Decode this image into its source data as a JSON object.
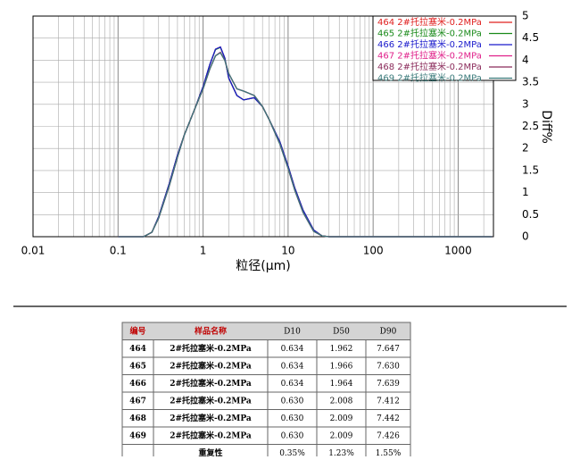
{
  "chart_data": {
    "type": "line",
    "x_label": "粒径(μm)",
    "y_label": "Diff%",
    "log_x": true,
    "grid": true,
    "legend": "top-right",
    "xlim": [
      0.01,
      2600
    ],
    "xticks": [
      0.01,
      0.1,
      1,
      10,
      100,
      1000
    ],
    "ylim": [
      0,
      5
    ],
    "yticks": [
      0,
      0.5,
      1,
      1.5,
      2,
      2.5,
      3,
      3.5,
      4,
      4.5,
      5
    ],
    "x": [
      0.1,
      0.2,
      0.25,
      0.3,
      0.4,
      0.5,
      0.6,
      0.8,
      1,
      1.2,
      1.4,
      1.6,
      1.8,
      2,
      2.5,
      3,
      4,
      5,
      6,
      8,
      10,
      12,
      15,
      20,
      25,
      30,
      100,
      2500
    ],
    "series": [
      {
        "name": "464 2#托拉塞米-0.2MPa",
        "color": "#e0201f",
        "values": [
          0,
          0,
          0.1,
          0.45,
          1.2,
          1.85,
          2.3,
          2.9,
          3.4,
          3.9,
          4.25,
          4.3,
          4.05,
          3.6,
          3.2,
          3.1,
          3.15,
          2.95,
          2.65,
          2.15,
          1.6,
          1.1,
          0.6,
          0.15,
          0.02,
          0,
          0,
          0
        ]
      },
      {
        "name": "465 2#托拉塞米-0.2MPa",
        "color": "#1a8a1a",
        "values": [
          0,
          0,
          0.1,
          0.45,
          1.2,
          1.85,
          2.3,
          2.9,
          3.4,
          3.9,
          4.24,
          4.29,
          4.05,
          3.6,
          3.2,
          3.1,
          3.15,
          2.95,
          2.65,
          2.15,
          1.6,
          1.1,
          0.6,
          0.15,
          0.02,
          0,
          0,
          0
        ]
      },
      {
        "name": "466 2#托拉塞米-0.2MPa",
        "color": "#1a1acc",
        "values": [
          0,
          0,
          0.1,
          0.45,
          1.2,
          1.85,
          2.3,
          2.9,
          3.4,
          3.9,
          4.25,
          4.3,
          4.05,
          3.6,
          3.2,
          3.1,
          3.15,
          2.95,
          2.65,
          2.15,
          1.6,
          1.1,
          0.6,
          0.15,
          0.02,
          0,
          0,
          0
        ]
      },
      {
        "name": "467 2#托拉塞米-0.2MPa",
        "color": "#e0208a",
        "values": [
          0,
          0,
          0.1,
          0.42,
          1.15,
          1.8,
          2.3,
          2.9,
          3.35,
          3.8,
          4.1,
          4.18,
          4.0,
          3.7,
          3.35,
          3.3,
          3.2,
          2.95,
          2.65,
          2.1,
          1.55,
          1.05,
          0.55,
          0.12,
          0.02,
          0,
          0,
          0
        ]
      },
      {
        "name": "468 2#托拉塞米-0.2MPa",
        "color": "#8a2a5a",
        "values": [
          0,
          0,
          0.1,
          0.42,
          1.15,
          1.8,
          2.3,
          2.9,
          3.35,
          3.8,
          4.1,
          4.17,
          4.0,
          3.7,
          3.35,
          3.3,
          3.2,
          2.95,
          2.65,
          2.1,
          1.55,
          1.05,
          0.55,
          0.12,
          0.02,
          0,
          0,
          0
        ]
      },
      {
        "name": "469 2#托拉塞米-0.2MPa",
        "color": "#3a7a7a",
        "values": [
          0,
          0,
          0.1,
          0.42,
          1.15,
          1.8,
          2.3,
          2.9,
          3.35,
          3.8,
          4.1,
          4.17,
          4.0,
          3.7,
          3.35,
          3.3,
          3.2,
          2.95,
          2.65,
          2.1,
          1.55,
          1.05,
          0.55,
          0.12,
          0.02,
          0,
          0,
          0
        ]
      }
    ]
  },
  "table": {
    "header": [
      "编号",
      "样品名称",
      "D10",
      "D50",
      "D90"
    ],
    "rows": [
      [
        "464",
        "2#托拉塞米-0.2MPa",
        "0.634",
        "1.962",
        "7.647"
      ],
      [
        "465",
        "2#托拉塞米-0.2MPa",
        "0.634",
        "1.966",
        "7.630"
      ],
      [
        "466",
        "2#托拉塞米-0.2MPa",
        "0.634",
        "1.964",
        "7.639"
      ],
      [
        "467",
        "2#托拉塞米-0.2MPa",
        "0.630",
        "2.008",
        "7.412"
      ],
      [
        "468",
        "2#托拉塞米-0.2MPa",
        "0.630",
        "2.009",
        "7.442"
      ],
      [
        "469",
        "2#托拉塞米-0.2MPa",
        "0.630",
        "2.009",
        "7.426"
      ]
    ],
    "repeatability": {
      "label": "重复性",
      "values": [
        "0.35%",
        "1.23%",
        "1.55%"
      ]
    }
  }
}
